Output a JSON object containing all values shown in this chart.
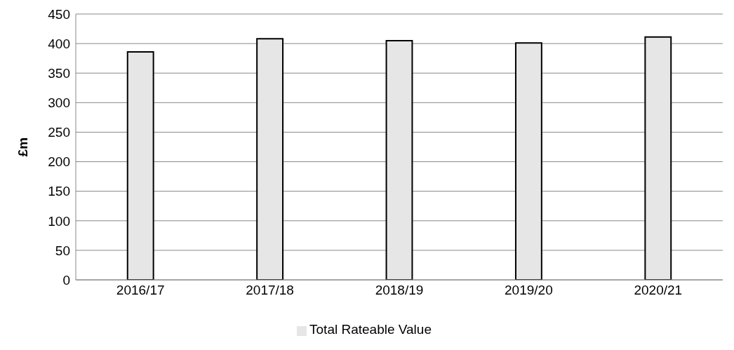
{
  "chart_data": {
    "type": "bar",
    "ylabel": "£m",
    "categories": [
      "2016/17",
      "2017/18",
      "2018/19",
      "2019/20",
      "2020/21"
    ],
    "series": [
      {
        "name": "Total Rateable Value",
        "color": "#e6e6e6",
        "values": [
          386,
          408,
          405,
          401,
          411
        ]
      }
    ],
    "ylim": [
      0,
      450
    ],
    "yticks": [
      0,
      50,
      100,
      150,
      200,
      250,
      300,
      350,
      400,
      450
    ],
    "grid": "y",
    "legend": "bottom"
  }
}
